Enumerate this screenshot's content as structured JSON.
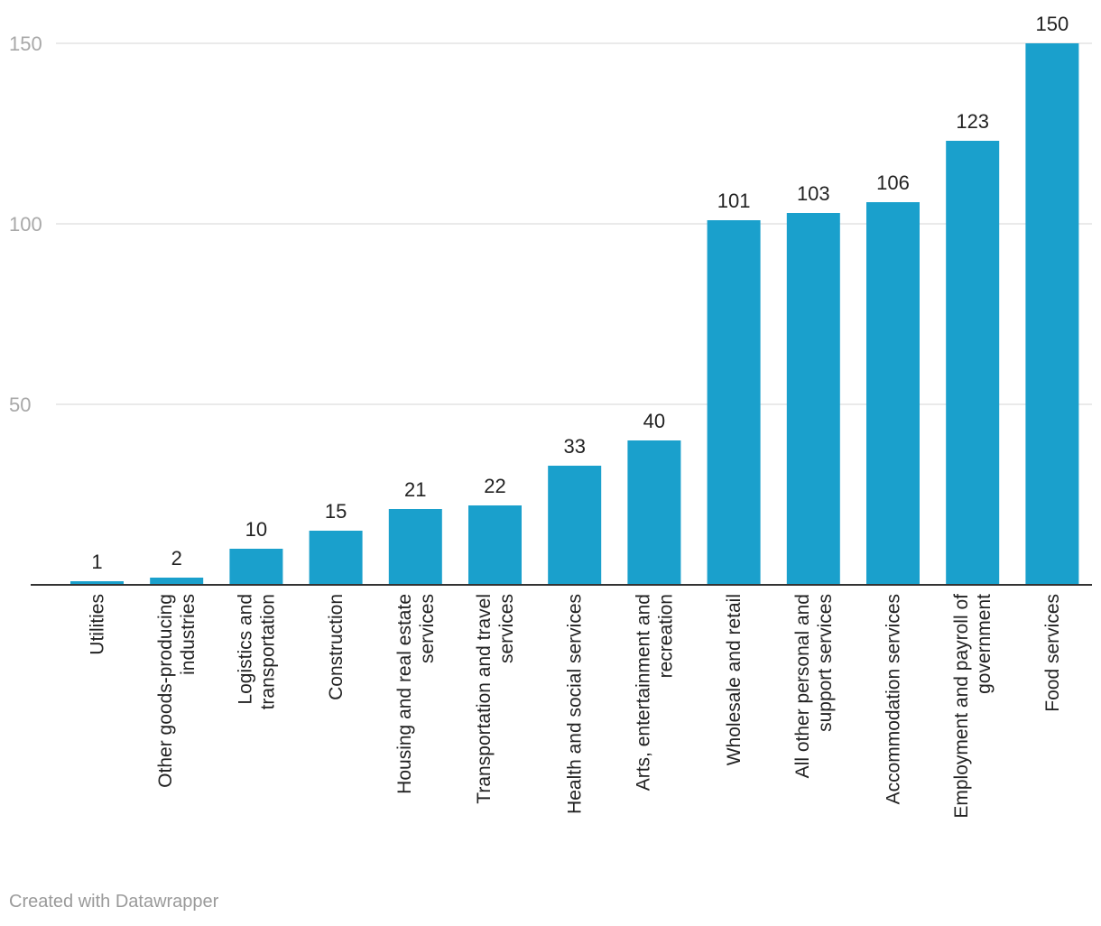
{
  "footer": {
    "credit": "Created with Datawrapper"
  },
  "colors": {
    "bar": "#1aa0cc",
    "grid": "#e3e3e3",
    "tick_text": "#a8a8a8",
    "label_text": "#222222"
  },
  "chart_data": {
    "type": "bar",
    "orientation": "vertical",
    "title": "",
    "xlabel": "",
    "ylabel": "",
    "ylim": [
      0,
      150
    ],
    "yticks": [
      50,
      100,
      150
    ],
    "grid": true,
    "legend": "none",
    "categories": [
      [
        "Utilities"
      ],
      [
        "Other goods-producing",
        "industries"
      ],
      [
        "Logistics and",
        "transportation"
      ],
      [
        "Construction"
      ],
      [
        "Housing and real estate",
        "services"
      ],
      [
        "Transportation and travel",
        "services"
      ],
      [
        "Health and social services"
      ],
      [
        "Arts, entertainment and",
        "recreation"
      ],
      [
        "Wholesale and retail"
      ],
      [
        "All other personal and",
        "support services"
      ],
      [
        "Accommodation services"
      ],
      [
        "Employment and payroll of",
        "government"
      ],
      [
        "Food services"
      ]
    ],
    "values": [
      1,
      2,
      10,
      15,
      21,
      22,
      33,
      40,
      101,
      103,
      106,
      123,
      150
    ]
  }
}
